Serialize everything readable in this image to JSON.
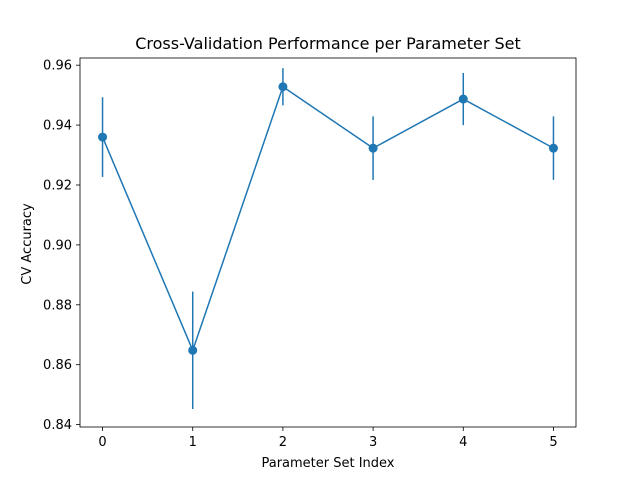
{
  "chart_data": {
    "type": "line",
    "title": "Cross-Validation Performance per Parameter Set",
    "xlabel": "Parameter Set Index",
    "ylabel": "CV Accuracy",
    "x": [
      0,
      1,
      2,
      3,
      4,
      5
    ],
    "xticks": [
      "0",
      "1",
      "2",
      "3",
      "4",
      "5"
    ],
    "yticks": [
      "0.84",
      "0.86",
      "0.88",
      "0.90",
      "0.92",
      "0.94",
      "0.96"
    ],
    "xlim": [
      -0.25,
      5.25
    ],
    "ylim": [
      0.8392,
      0.9624
    ],
    "grid": false,
    "series": [
      {
        "values": [
          0.936,
          0.8648,
          0.9528,
          0.9323,
          0.9487,
          0.9323
        ],
        "errors": [
          0.0133,
          0.0196,
          0.0062,
          0.0106,
          0.0087,
          0.0106
        ],
        "color": "#1f77b4",
        "marker": "circle"
      }
    ]
  }
}
